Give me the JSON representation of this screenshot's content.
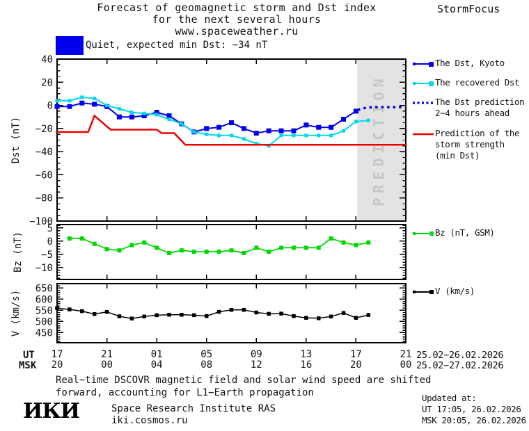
{
  "header": {
    "title_line1": "Forecast of geomagnetic storm and Dst index",
    "title_line2": "for the next several hours",
    "title_line3": "www.spaceweather.ru",
    "brand": "StormFocus"
  },
  "status": {
    "label": "Quiet, expected min Dst: −34 nT",
    "box_color": "#0000ee"
  },
  "colors": {
    "kyoto_blue": "#0000ee",
    "recovered_cyan": "#00d8ea",
    "prediction_red": "#ee0000",
    "bz_green": "#00d800",
    "v_black": "#000000",
    "band_gray": "#e3e3e3",
    "band_text_gray": "#c6c6c6"
  },
  "legend": {
    "items": [
      {
        "name": "dst-kyoto",
        "label": "The Dst, Kyoto",
        "color": "#0000ee",
        "style": "line-squares"
      },
      {
        "name": "dst-recovered",
        "label": "The recovered Dst",
        "color": "#00d8ea",
        "style": "line-squares"
      },
      {
        "name": "dst-prediction",
        "label": "The Dst prediction\n2−4 hours ahead",
        "color": "#0000ee",
        "style": "dotted"
      },
      {
        "name": "storm-strength",
        "label": "Prediction of the\nstorm strength\n(min Dst)",
        "color": "#ee0000",
        "style": "line"
      },
      {
        "name": "bz",
        "label": "Bz (nT, GSM)",
        "color": "#00d800",
        "style": "line-squares"
      },
      {
        "name": "v",
        "label": "V (km/s)",
        "color": "#000000",
        "style": "line-squares"
      }
    ]
  },
  "chart_data": [
    {
      "id": "dst",
      "type": "line",
      "ylabel": "Dst (nT)",
      "xlim": [
        0,
        28
      ],
      "ylim": [
        -100,
        40
      ],
      "yticks": [
        40,
        20,
        0,
        -20,
        -40,
        -60,
        -80,
        -100
      ],
      "ytick_labels": [
        "40",
        "20",
        "0",
        "−20",
        "−40",
        "−60",
        "−80",
        "−100"
      ],
      "yminor_step": 5,
      "xtick_hours": [
        4,
        8,
        12,
        16,
        20,
        24
      ],
      "prediction_band": {
        "x0": 24.1,
        "x1": 28,
        "label": "PREDICTION"
      },
      "series": [
        {
          "name": "The Dst, Kyoto",
          "color": "#0000ee",
          "marker": 7,
          "width": 2,
          "x_start": 0,
          "y": [
            -1,
            -1,
            2,
            1,
            -1,
            -10,
            -10,
            -9,
            -6,
            -9,
            -16,
            -23,
            -20,
            -19,
            -15,
            -20,
            -24,
            -22,
            -22,
            -22,
            -17,
            -19,
            -19,
            -12,
            -5
          ]
        },
        {
          "name": "The recovered Dst",
          "color": "#00d8ea",
          "marker": 5,
          "width": 2,
          "x_start": 0,
          "y": [
            4,
            4,
            7,
            6,
            0,
            -3,
            -6,
            -7,
            -8,
            -12,
            -16,
            -23,
            -25,
            -26,
            -26,
            -29,
            -33,
            -35,
            -26,
            -26,
            -26,
            -26,
            -26,
            -22,
            -14,
            -13
          ]
        },
        {
          "name": "The Dst prediction 2−4 hours ahead",
          "color": "#0000ee",
          "width": 3.5,
          "dash": "3.5 5",
          "points": [
            [
              24.15,
              -4
            ],
            [
              24.8,
              -2
            ],
            [
              25.6,
              -1.5
            ],
            [
              27.7,
              -1.5
            ]
          ]
        },
        {
          "name": "Prediction of the storm strength (min Dst)",
          "color": "#ee0000",
          "width": 2.5,
          "points": [
            [
              0,
              -23
            ],
            [
              2.5,
              -23
            ],
            [
              3,
              -9
            ],
            [
              4.3,
              -21
            ],
            [
              8,
              -21
            ],
            [
              8.4,
              -24
            ],
            [
              9.4,
              -24
            ],
            [
              10.3,
              -34
            ],
            [
              28,
              -34
            ]
          ]
        }
      ]
    },
    {
      "id": "bz",
      "type": "line",
      "ylabel": "Bz (nT)",
      "xlim": [
        0,
        28
      ],
      "ylim": [
        -14.5,
        6.3
      ],
      "yticks": [
        5,
        0,
        -5,
        -10
      ],
      "ytick_labels": [
        "5",
        "0",
        "−5",
        "−10"
      ],
      "yminor_step": 1,
      "xtick_hours": [
        4,
        8,
        12,
        16,
        20,
        24
      ],
      "series": [
        {
          "name": "Bz (nT, GSM)",
          "color": "#00d800",
          "marker": 6,
          "width": 1.8,
          "x_start": 1,
          "y": [
            1,
            1,
            -1,
            -3,
            -3.5,
            -1.5,
            -0.5,
            -2.5,
            -4.5,
            -3.5,
            -4,
            -4,
            -4,
            -3.5,
            -4.5,
            -2.5,
            -4,
            -2.5,
            -2.5,
            -2.5,
            -2.5,
            1,
            -0.5,
            -1.5,
            -0.5
          ]
        }
      ]
    },
    {
      "id": "v",
      "type": "line",
      "ylabel": "V (km/s)",
      "xlim": [
        0,
        28
      ],
      "ylim": [
        404,
        670
      ],
      "yticks": [
        650,
        600,
        550,
        500,
        450
      ],
      "ytick_labels": [
        "650",
        "600",
        "550",
        "500",
        "450"
      ],
      "yminor_step": 10,
      "xtick_hours": [
        4,
        8,
        12,
        16,
        20,
        24
      ],
      "series": [
        {
          "name": "V (km/s)",
          "color": "#000000",
          "marker": 5.5,
          "width": 1.5,
          "x_start": 0,
          "y": [
            560,
            554,
            546,
            533,
            543,
            523,
            513,
            522,
            528,
            530,
            530,
            528,
            524,
            543,
            552,
            552,
            540,
            534,
            535,
            524,
            516,
            514,
            522,
            538,
            516,
            529
          ]
        }
      ]
    }
  ],
  "xaxis": {
    "ut_header": "UT",
    "msk_header": "MSK",
    "ut_ticks": [
      "17",
      "21",
      "01",
      "05",
      "09",
      "13",
      "17",
      "21"
    ],
    "msk_ticks": [
      "20",
      "00",
      "04",
      "08",
      "12",
      "16",
      "20",
      "00"
    ],
    "ut_dates": "25.02−26.02.2026",
    "msk_dates": "25.02−27.02.2026"
  },
  "footer": {
    "note": "Real−time DSCOVR magnetic field and solar wind speed are shifted\nforward, accounting for L1−Earth propagation",
    "logo": "ИКИ",
    "institute_line1": "Space Research Institute RAS",
    "institute_line2": "iki.cosmos.ru",
    "updated_label": "Updated at:",
    "updated_ut": "UT  17:05, 26.02.2026",
    "updated_msk": "MSK 20:05, 26.02.2026"
  }
}
